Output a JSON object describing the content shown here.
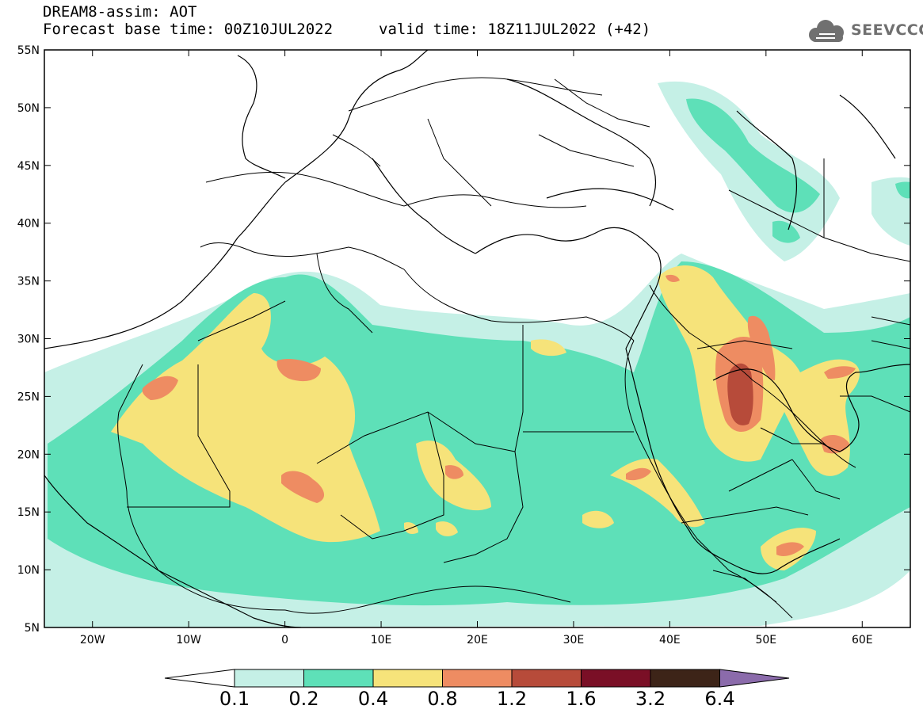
{
  "header": {
    "title_line1": "DREAM8-assim: AOT",
    "title_line2": "Forecast base time: 00Z10JUL2022",
    "valid_time": "valid time: 18Z11JUL2022 (+42)"
  },
  "logo": {
    "text": "SEEVCCC",
    "icon": "cloud-icon"
  },
  "map": {
    "lon_range": [
      -25,
      65
    ],
    "lat_range": [
      5,
      55
    ],
    "lat_ticks": [
      "55N",
      "50N",
      "45N",
      "40N",
      "35N",
      "30N",
      "25N",
      "20N",
      "15N",
      "10N",
      "5N"
    ],
    "lon_ticks": [
      "20W",
      "10W",
      "0",
      "10E",
      "20E",
      "30E",
      "40E",
      "50E",
      "60E"
    ]
  },
  "colorbar": {
    "labels": [
      "0.1",
      "0.2",
      "0.4",
      "0.8",
      "1.2",
      "1.6",
      "3.2",
      "6.4"
    ],
    "colors": [
      "#ffffff",
      "#c5f0e6",
      "#5ee0b8",
      "#f6e37a",
      "#ee8c62",
      "#b74b3a",
      "#7a0f26",
      "#3d2418",
      "#8b6bab"
    ]
  }
}
